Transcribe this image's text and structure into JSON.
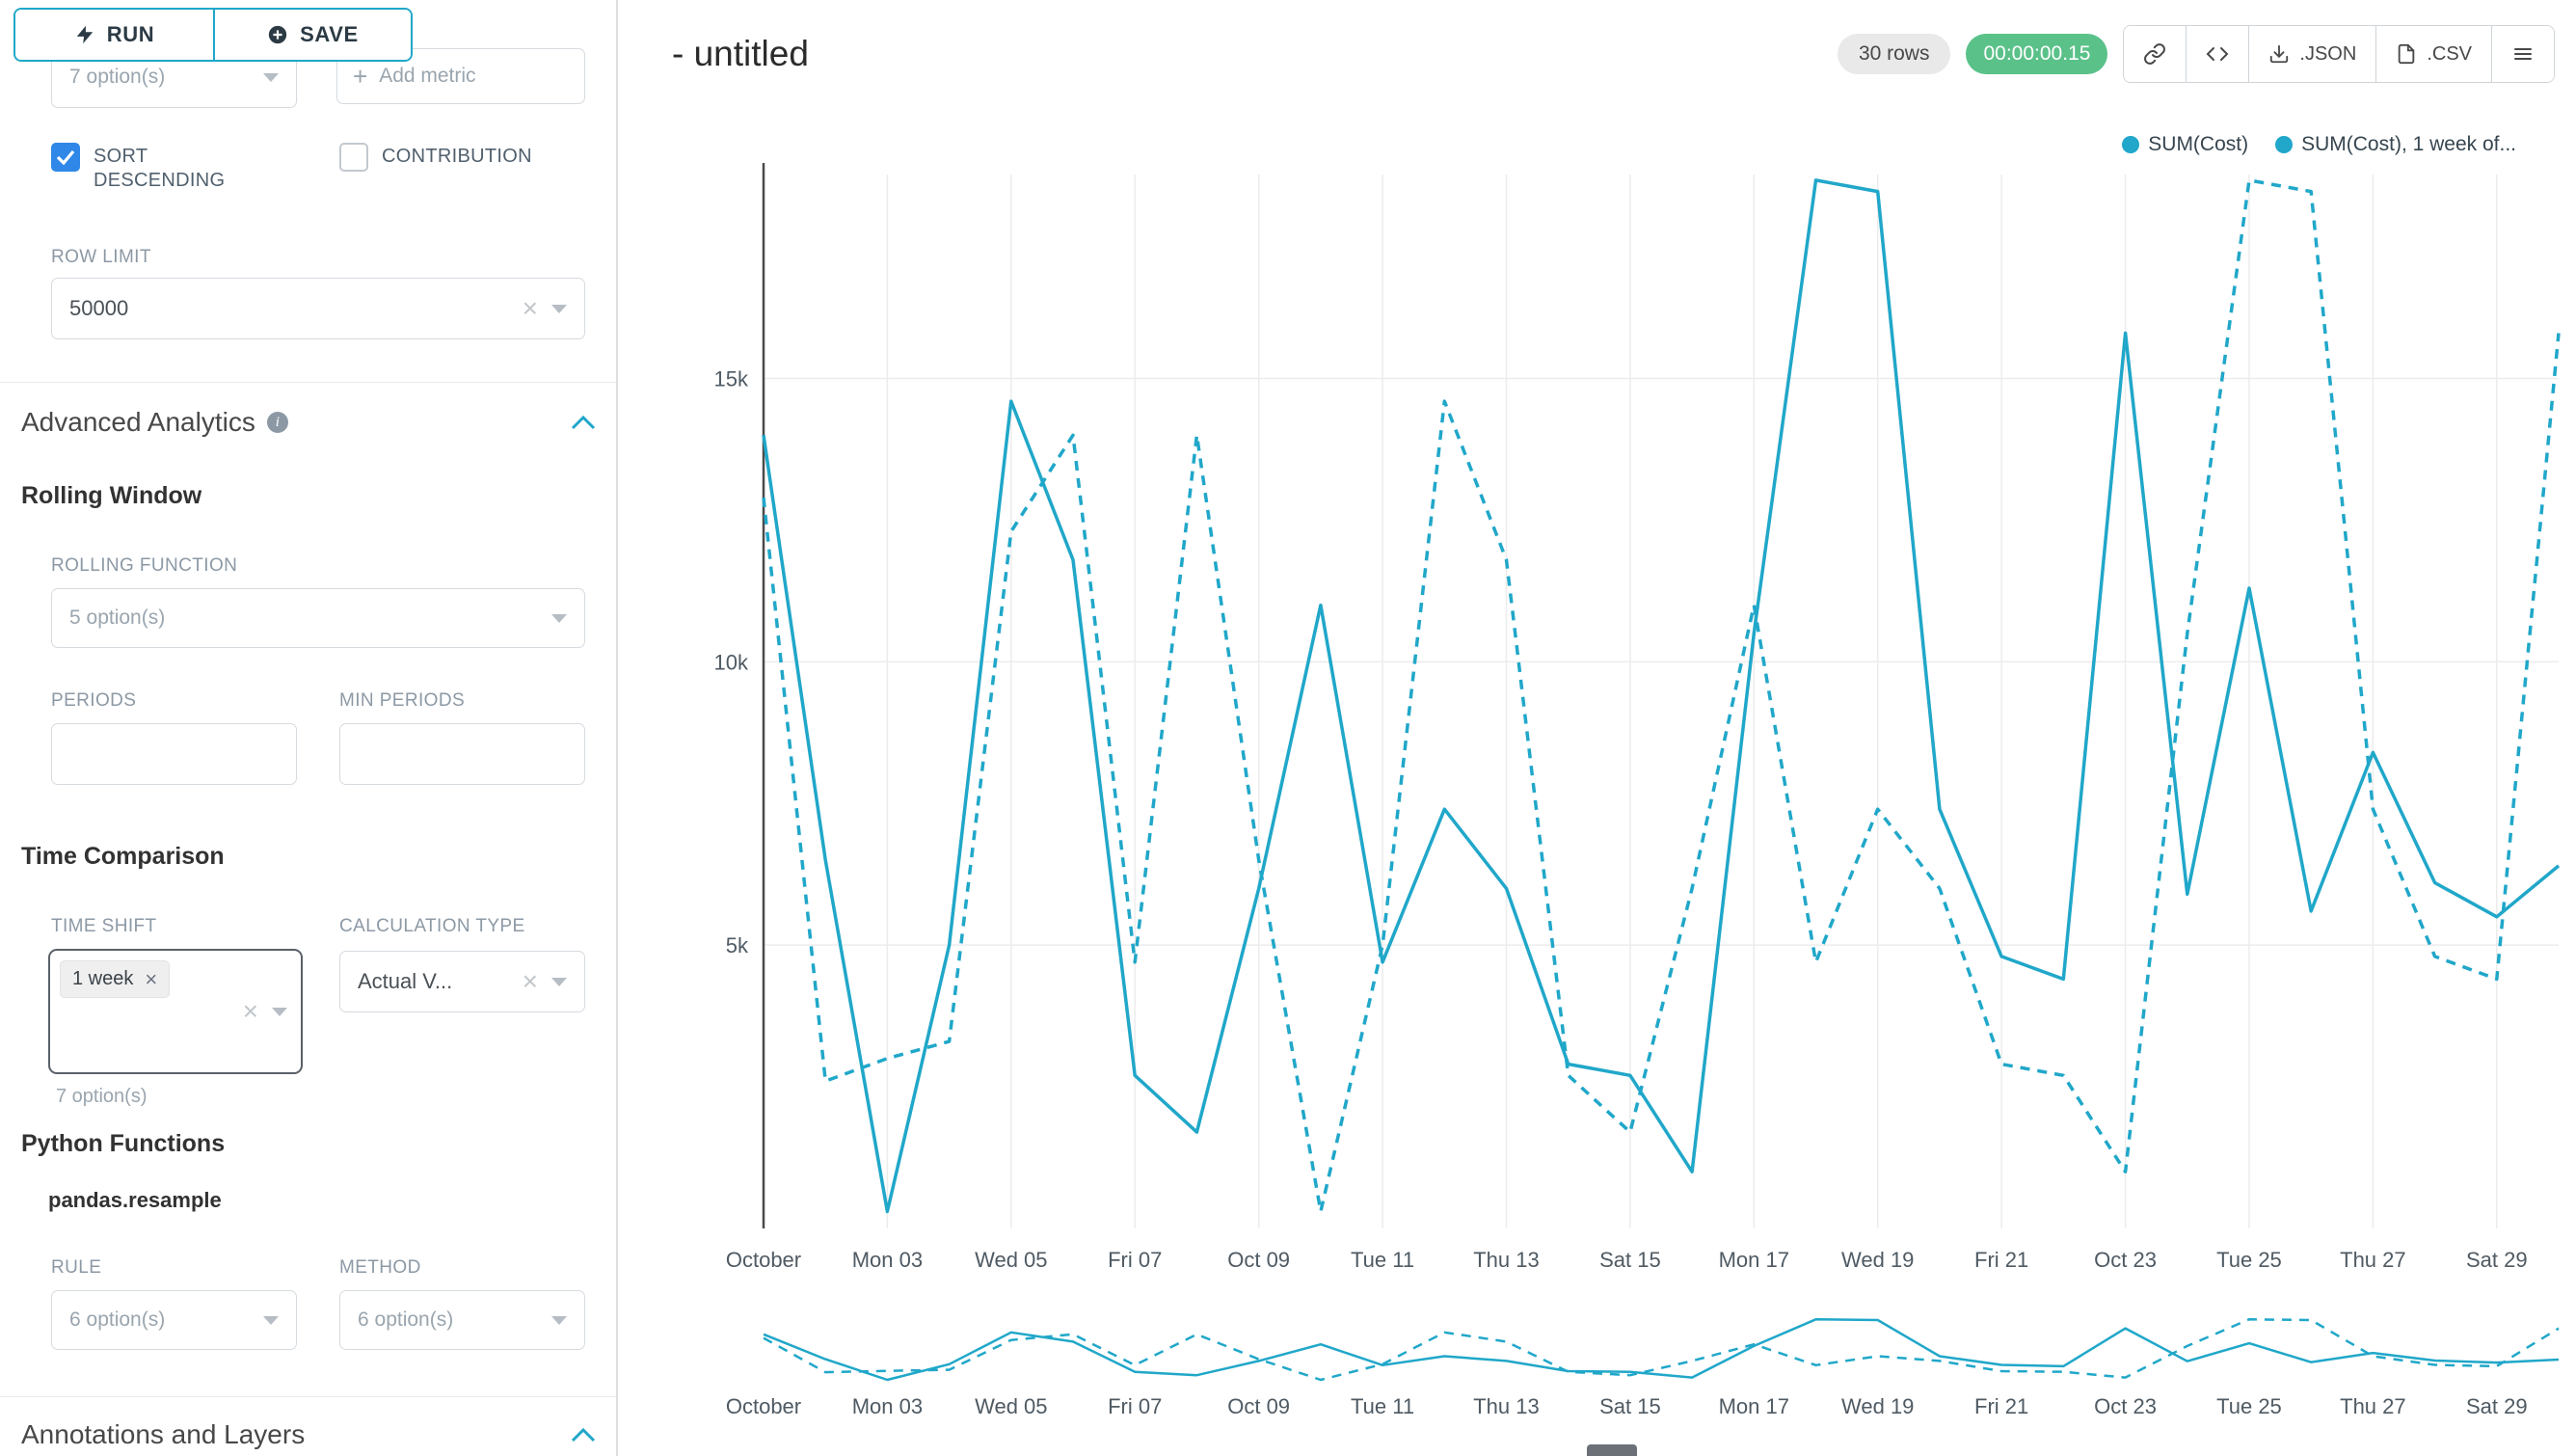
{
  "colors": {
    "accent": "#20A7C9",
    "checkbox": "#2F88E8",
    "timer_green": "#5AC189",
    "badge_gray": "#E9E9E9"
  },
  "toolbar": {
    "run": "RUN",
    "save": "SAVE"
  },
  "controls": {
    "groupby_placeholder": "7 option(s)",
    "add_metric": "Add metric",
    "sort_descending": "SORT DESCENDING",
    "contribution": "CONTRIBUTION",
    "row_limit": {
      "label": "ROW LIMIT",
      "value": "50000"
    },
    "advanced_analytics": "Advanced Analytics",
    "rolling_window": "Rolling Window",
    "rolling_function": {
      "label": "ROLLING FUNCTION",
      "placeholder": "5 option(s)"
    },
    "periods_label": "PERIODS",
    "min_periods_label": "MIN PERIODS",
    "time_comparison": "Time Comparison",
    "time_shift": {
      "label": "TIME SHIFT",
      "tag": "1 week",
      "helper": "7 option(s)"
    },
    "calculation_type": {
      "label": "CALCULATION TYPE",
      "value": "Actual V..."
    },
    "python_functions": "Python Functions",
    "pandas_resample": "pandas.resample",
    "rule": {
      "label": "RULE",
      "placeholder": "6 option(s)"
    },
    "method": {
      "label": "METHOD",
      "placeholder": "6 option(s)"
    },
    "annotations": "Annotations and Layers"
  },
  "header": {
    "title": "- untitled",
    "row_count": "30 rows",
    "timer": "00:00:00.15",
    "export_json": ".JSON",
    "export_csv": ".CSV"
  },
  "chart_data": {
    "type": "line",
    "title": "",
    "xlabel": "",
    "ylabel": "",
    "grid": true,
    "legend_position": "top-right",
    "points_per_label": 2,
    "x_labels": [
      "October",
      "Mon 03",
      "Wed 05",
      "Fri 07",
      "Oct 09",
      "Tue 11",
      "Thu 13",
      "Sat 15",
      "Mon 17",
      "Wed 19",
      "Fri 21",
      "Oct 23",
      "Tue 25",
      "Thu 27",
      "Sat 29"
    ],
    "y_ticks": [
      {
        "label": "5k",
        "value": 5000
      },
      {
        "label": "10k",
        "value": 10000
      },
      {
        "label": "15k",
        "value": 15000
      }
    ],
    "ylim": [
      0,
      18600
    ],
    "series": [
      {
        "name": "SUM(Cost)",
        "line_style": "solid",
        "color": "#20A7C9",
        "values": [
          14000,
          6500,
          300,
          5000,
          14600,
          11800,
          2700,
          1700,
          6000,
          11000,
          4700,
          7400,
          6000,
          2900,
          2700,
          1000,
          10500,
          18500,
          18300,
          7400,
          4800,
          4400,
          15800,
          5900,
          11300,
          5600,
          8400,
          6100,
          5500,
          6400
        ]
      },
      {
        "name": "SUM(Cost), 1 week of...",
        "line_style": "dashed",
        "color": "#20A7C9",
        "values": [
          12900,
          2600,
          3000,
          3300,
          12300,
          14000,
          4700,
          14000,
          6500,
          300,
          5000,
          14600,
          11800,
          2700,
          1700,
          6000,
          11000,
          4700,
          7400,
          6000,
          2900,
          2700,
          1000,
          10500,
          18500,
          18300,
          7400,
          4800,
          4400,
          15800
        ]
      }
    ],
    "has_mini_preview": true
  }
}
